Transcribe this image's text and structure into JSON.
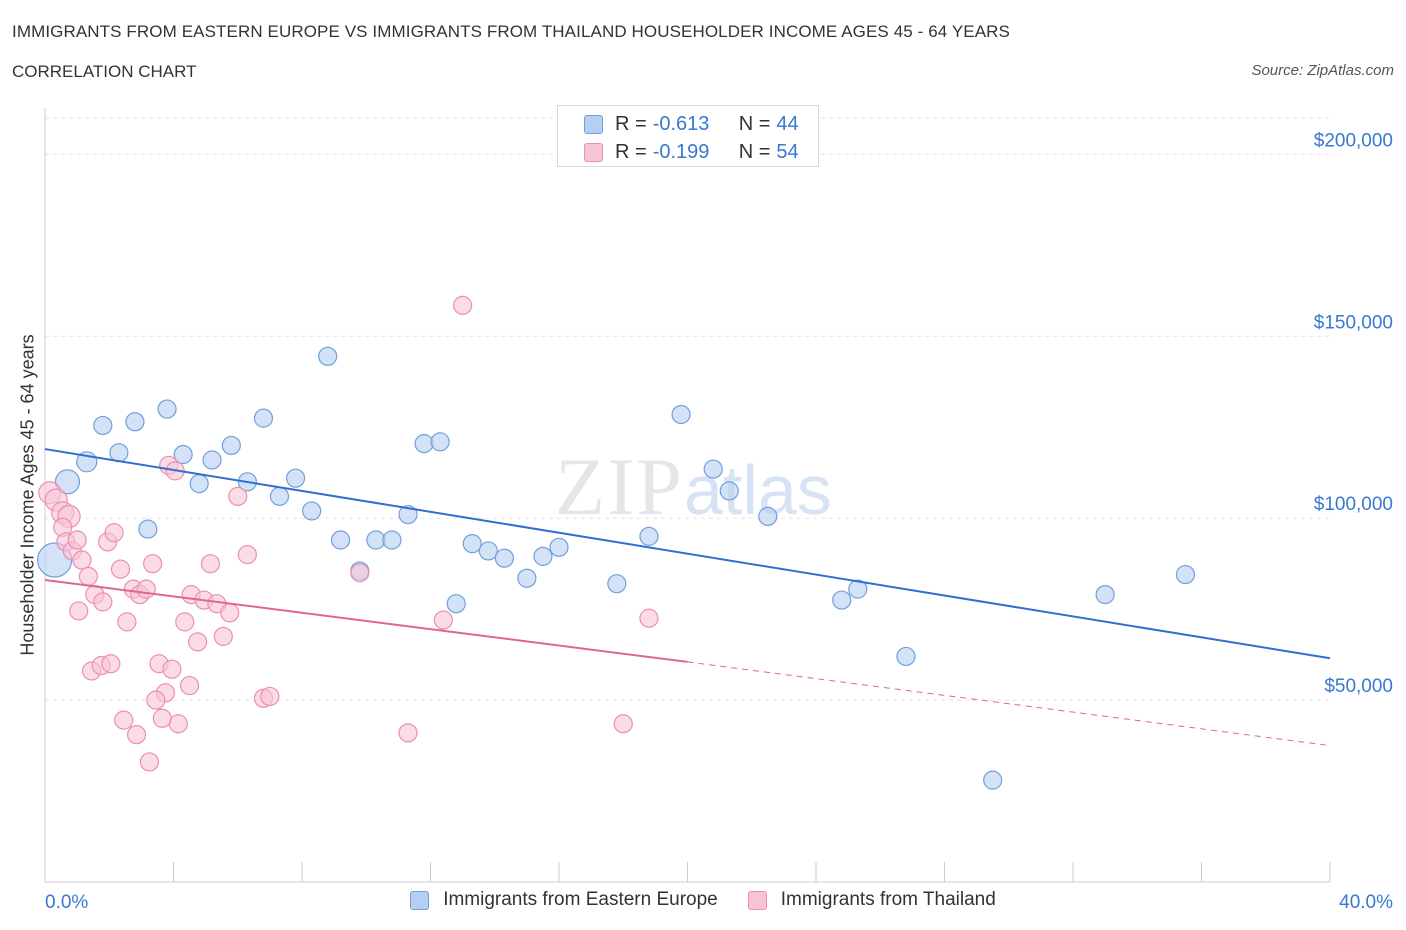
{
  "header": {
    "title": "IMMIGRANTS FROM EASTERN EUROPE VS IMMIGRANTS FROM THAILAND HOUSEHOLDER INCOME AGES 45 - 64 YEARS",
    "subtitle": "CORRELATION CHART",
    "source": "Source: ZipAtlas.com"
  },
  "watermark": {
    "zip": "ZIP",
    "atlas": "atlas"
  },
  "legend_stats": [
    {
      "r_label": "R =",
      "r_value": "-0.613",
      "n_label": "N =",
      "n_value": "44",
      "color": "#a9c8f0"
    },
    {
      "r_label": "R =",
      "r_value": "-0.199",
      "n_label": "N =",
      "n_value": "54",
      "color": "#f5b8cc"
    }
  ],
  "chart_data": {
    "type": "scatter",
    "title": "IMMIGRANTS FROM EASTERN EUROPE VS IMMIGRANTS FROM THAILAND HOUSEHOLDER INCOME AGES 45 - 64 YEARS",
    "xlabel": "",
    "ylabel": "Householder Income Ages 45 - 64 years",
    "xlim": [
      0,
      40
    ],
    "ylim": [
      0,
      210000
    ],
    "x_tick_labels": [
      "0.0%",
      "40.0%"
    ],
    "y_ticks": [
      50000,
      100000,
      150000,
      200000
    ],
    "y_tick_labels": [
      "$50,000",
      "$100,000",
      "$150,000",
      "$200,000"
    ],
    "grid": true,
    "legend_position": "bottom",
    "series": [
      {
        "name": "Immigrants from Eastern Europe",
        "color": "#6fa0dc",
        "fill": "#b5cff2",
        "trend": {
          "x": [
            0,
            40
          ],
          "y": [
            119000,
            61500
          ],
          "style": "solid",
          "color": "#2f6fcf"
        },
        "points": [
          [
            0.3,
            88500
          ],
          [
            0.7,
            110000
          ],
          [
            1.3,
            115500
          ],
          [
            1.8,
            125500
          ],
          [
            2.3,
            118000
          ],
          [
            2.8,
            126500
          ],
          [
            3.2,
            97000
          ],
          [
            3.8,
            130000
          ],
          [
            4.3,
            117500
          ],
          [
            4.8,
            109500
          ],
          [
            5.2,
            116000
          ],
          [
            5.8,
            120000
          ],
          [
            6.3,
            110000
          ],
          [
            6.8,
            127500
          ],
          [
            7.3,
            106000
          ],
          [
            7.8,
            111000
          ],
          [
            8.3,
            102000
          ],
          [
            8.8,
            144500
          ],
          [
            9.2,
            94000
          ],
          [
            9.8,
            85500
          ],
          [
            10.3,
            94000
          ],
          [
            10.8,
            94000
          ],
          [
            11.3,
            101000
          ],
          [
            11.8,
            120500
          ],
          [
            12.3,
            121000
          ],
          [
            12.8,
            76500
          ],
          [
            13.3,
            93000
          ],
          [
            13.8,
            91000
          ],
          [
            14.3,
            89000
          ],
          [
            15.0,
            83500
          ],
          [
            15.5,
            89500
          ],
          [
            16.0,
            92000
          ],
          [
            17.8,
            82000
          ],
          [
            18.8,
            95000
          ],
          [
            19.8,
            128500
          ],
          [
            20.8,
            113500
          ],
          [
            21.3,
            107500
          ],
          [
            22.5,
            100500
          ],
          [
            24.8,
            77500
          ],
          [
            25.3,
            80500
          ],
          [
            26.8,
            62000
          ],
          [
            29.5,
            28000
          ],
          [
            33.0,
            79000
          ],
          [
            35.5,
            84500
          ]
        ]
      },
      {
        "name": "Immigrants from Thailand",
        "color": "#ec8fae",
        "fill": "#f8c4d5",
        "trend": {
          "x": [
            0,
            20
          ],
          "y": [
            83000,
            60500
          ],
          "style": "solid",
          "color": "#e0668f",
          "dashed_extension": {
            "x": [
              20,
              40
            ],
            "y": [
              60500,
              37500
            ]
          }
        },
        "points": [
          [
            0.15,
            107000
          ],
          [
            0.35,
            105000
          ],
          [
            0.55,
            101500
          ],
          [
            0.75,
            100500
          ],
          [
            0.55,
            97500
          ],
          [
            0.65,
            93500
          ],
          [
            0.85,
            91000
          ],
          [
            1.0,
            94000
          ],
          [
            1.15,
            88500
          ],
          [
            1.35,
            84000
          ],
          [
            1.55,
            79000
          ],
          [
            1.8,
            77000
          ],
          [
            1.95,
            93500
          ],
          [
            2.15,
            96000
          ],
          [
            2.35,
            86000
          ],
          [
            2.55,
            71500
          ],
          [
            2.75,
            80500
          ],
          [
            2.95,
            79000
          ],
          [
            3.15,
            80500
          ],
          [
            3.35,
            87500
          ],
          [
            3.55,
            60000
          ],
          [
            3.75,
            52000
          ],
          [
            3.95,
            58500
          ],
          [
            4.15,
            43500
          ],
          [
            4.35,
            71500
          ],
          [
            4.55,
            79000
          ],
          [
            4.75,
            66000
          ],
          [
            4.95,
            77500
          ],
          [
            5.15,
            87500
          ],
          [
            5.35,
            76500
          ],
          [
            5.55,
            67500
          ],
          [
            5.75,
            74000
          ],
          [
            6.0,
            106000
          ],
          [
            6.3,
            90000
          ],
          [
            6.8,
            50500
          ],
          [
            7.0,
            51000
          ],
          [
            1.05,
            74500
          ],
          [
            1.45,
            58000
          ],
          [
            1.75,
            59500
          ],
          [
            2.05,
            60000
          ],
          [
            2.45,
            44500
          ],
          [
            2.85,
            40500
          ],
          [
            3.25,
            33000
          ],
          [
            3.45,
            50000
          ],
          [
            3.65,
            45000
          ],
          [
            3.85,
            114500
          ],
          [
            4.05,
            113000
          ],
          [
            4.5,
            54000
          ],
          [
            9.8,
            85000
          ],
          [
            11.3,
            41000
          ],
          [
            12.4,
            72000
          ],
          [
            13.0,
            158500
          ],
          [
            18.0,
            43500
          ],
          [
            18.8,
            72500
          ]
        ]
      }
    ]
  },
  "bottom_legend": [
    {
      "label": "Immigrants from Eastern Europe",
      "color": "#b5cff2",
      "border": "#6fa0dc"
    },
    {
      "label": "Immigrants from Thailand",
      "color": "#f8c4d5",
      "border": "#ec8fae"
    }
  ]
}
